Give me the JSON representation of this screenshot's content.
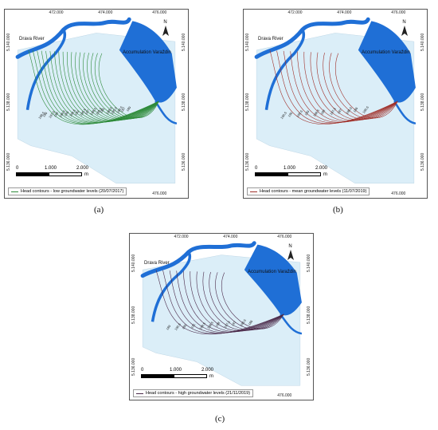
{
  "panels": [
    {
      "id": "a",
      "caption": "(a)",
      "contour_color": "#2e8b3a",
      "legend": "Head contours - low groundwater levels (20/07/2017)",
      "contour_labels": [
        "186,5",
        "186",
        "187,5",
        "188",
        "188,5",
        "189",
        "189,5",
        "190",
        "190,5",
        "187",
        "188,5",
        "189,5",
        "185",
        "186,5",
        "185,5",
        "186,5",
        "187",
        "189"
      ]
    },
    {
      "id": "b",
      "caption": "(b)",
      "contour_color": "#a0302a",
      "legend": "Head contours - mean groundwater levels (11/07/2019)",
      "contour_labels": [
        "190,5",
        "190",
        "189,5",
        "189",
        "188,5",
        "188",
        "187,5",
        "187",
        "186,5",
        "186",
        "185,5"
      ]
    },
    {
      "id": "c",
      "caption": "(c)",
      "contour_color": "#4b2a4a",
      "legend": "Head contours - high groundwater levels (21/11/2019)",
      "contour_labels": [
        "189",
        "190,5",
        "190",
        "191",
        "189,5",
        "188,5",
        "188",
        "187,5",
        "187",
        "186,5",
        "186"
      ]
    }
  ],
  "map": {
    "top_ticks": [
      "472.000",
      "474.000",
      "476.000"
    ],
    "bottom_ticks": [
      "472.000",
      "474.000",
      "476.000"
    ],
    "left_ticks": [
      "5.140.000",
      "5.138.000",
      "5.136.000"
    ],
    "right_ticks": [
      "5.140.000",
      "5.138.000",
      "5.136.000"
    ],
    "river_label": "Drava River",
    "lake_label": "Accumulation Varaždin",
    "north_label": "N",
    "scale_labels": [
      "0",
      "1.000",
      "2.000"
    ],
    "scale_unit": "m"
  },
  "colors": {
    "water": "#1f6fd6",
    "aquifer": "#dbeef8",
    "frame": "#555555"
  }
}
